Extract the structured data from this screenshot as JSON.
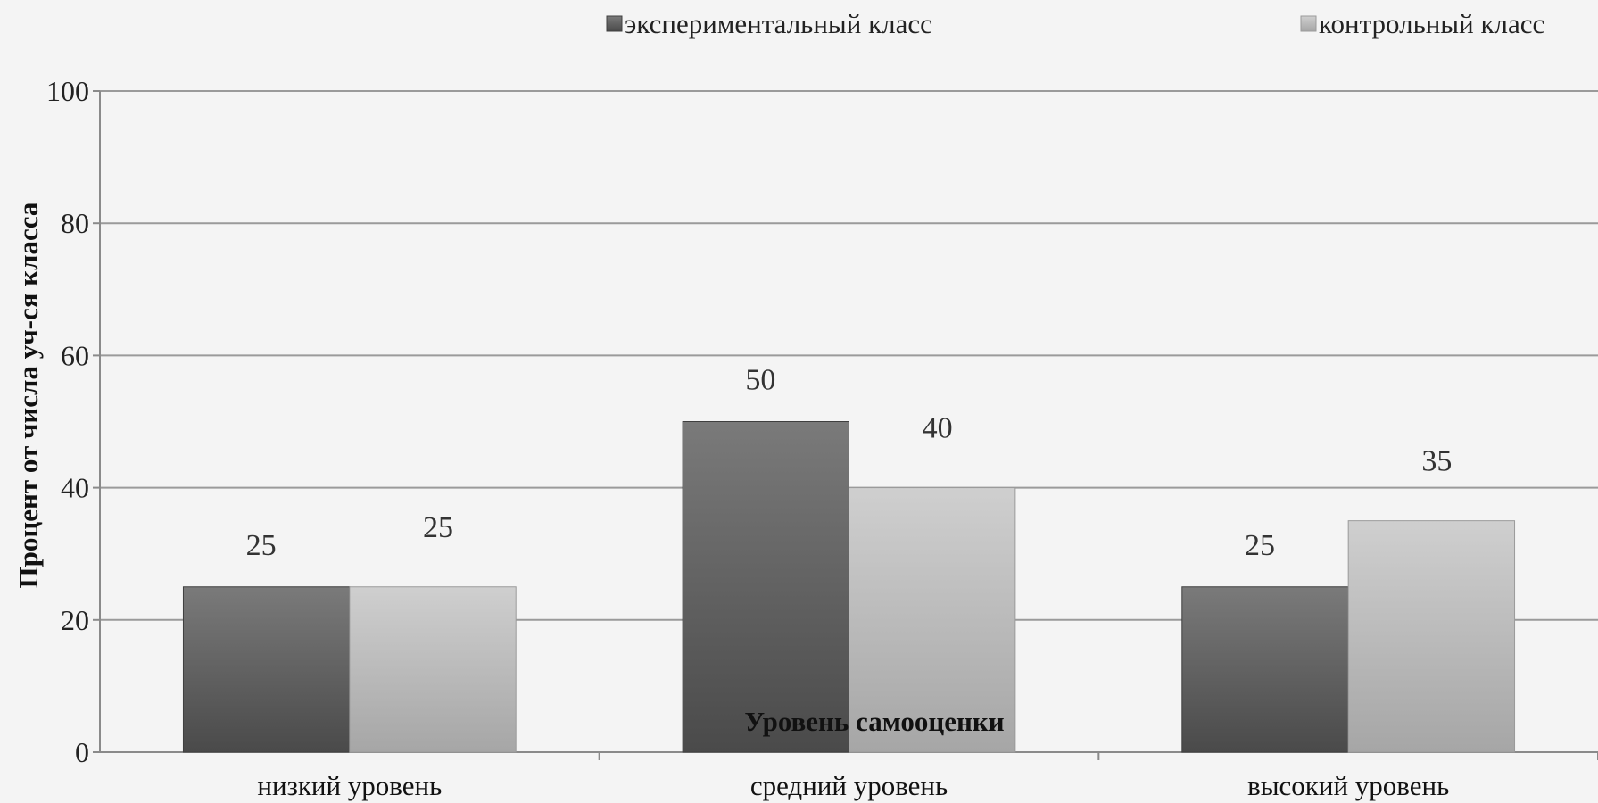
{
  "chart_data": {
    "type": "bar",
    "categories": [
      "низкий уровень",
      "средний уровень",
      "высокий уровень"
    ],
    "series": [
      {
        "name": "экспериментальный класс",
        "values": [
          25,
          50,
          25
        ],
        "color": "#5a5a5a"
      },
      {
        "name": "контрольный класс",
        "values": [
          25,
          40,
          35
        ],
        "color": "#b8b8b8"
      }
    ],
    "ylabel": "Процент от числа уч-ся класса",
    "xlabel": "Уровень самооценки",
    "ylim": [
      0,
      100
    ],
    "yticks": [
      0,
      20,
      40,
      60,
      80,
      100
    ],
    "grid": true,
    "legend_position": "top"
  }
}
